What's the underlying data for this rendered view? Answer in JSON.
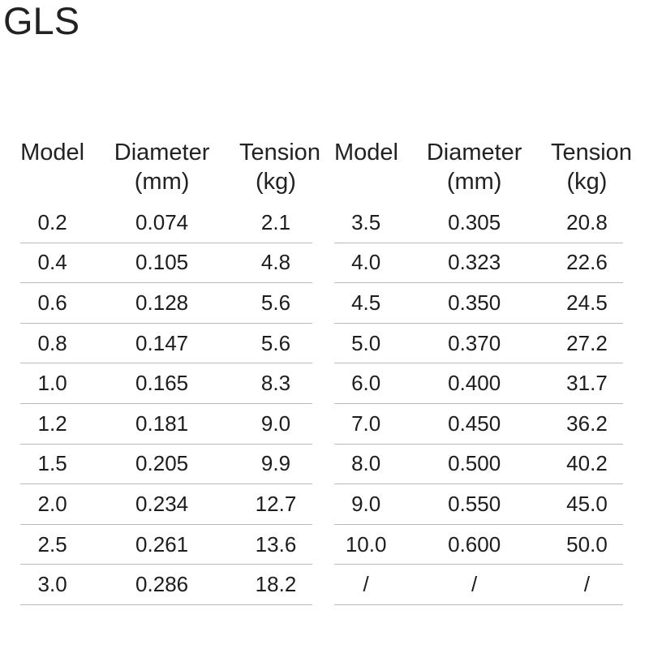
{
  "brand": {
    "logo_text": "GLS"
  },
  "spec": {
    "column_headers": [
      {
        "label": "Model",
        "unit": ""
      },
      {
        "label": "Diameter",
        "unit": "(mm)"
      },
      {
        "label": "Tension",
        "unit": "(kg)"
      }
    ],
    "left_table_rows": [
      {
        "model": "0.2",
        "diameter_mm": "0.074",
        "tension_kg": "2.1"
      },
      {
        "model": "0.4",
        "diameter_mm": "0.105",
        "tension_kg": "4.8"
      },
      {
        "model": "0.6",
        "diameter_mm": "0.128",
        "tension_kg": "5.6"
      },
      {
        "model": "0.8",
        "diameter_mm": "0.147",
        "tension_kg": "5.6"
      },
      {
        "model": "1.0",
        "diameter_mm": "0.165",
        "tension_kg": "8.3"
      },
      {
        "model": "1.2",
        "diameter_mm": "0.181",
        "tension_kg": "9.0"
      },
      {
        "model": "1.5",
        "diameter_mm": "0.205",
        "tension_kg": "9.9"
      },
      {
        "model": "2.0",
        "diameter_mm": "0.234",
        "tension_kg": "12.7"
      },
      {
        "model": "2.5",
        "diameter_mm": "0.261",
        "tension_kg": "13.6"
      },
      {
        "model": "3.0",
        "diameter_mm": "0.286",
        "tension_kg": "18.2"
      }
    ],
    "right_table_rows": [
      {
        "model": "3.5",
        "diameter_mm": "0.305",
        "tension_kg": "20.8"
      },
      {
        "model": "4.0",
        "diameter_mm": "0.323",
        "tension_kg": "22.6"
      },
      {
        "model": "4.5",
        "diameter_mm": "0.350",
        "tension_kg": "24.5"
      },
      {
        "model": "5.0",
        "diameter_mm": "0.370",
        "tension_kg": "27.2"
      },
      {
        "model": "6.0",
        "diameter_mm": "0.400",
        "tension_kg": "31.7"
      },
      {
        "model": "7.0",
        "diameter_mm": "0.450",
        "tension_kg": "36.2"
      },
      {
        "model": "8.0",
        "diameter_mm": "0.500",
        "tension_kg": "40.2"
      },
      {
        "model": "9.0",
        "diameter_mm": "0.550",
        "tension_kg": "45.0"
      },
      {
        "model": "10.0",
        "diameter_mm": "0.600",
        "tension_kg": "50.0"
      },
      {
        "model": "/",
        "diameter_mm": "/",
        "tension_kg": "/"
      }
    ]
  },
  "colors": {
    "background": "#ffffff",
    "heading": "#222222",
    "text": "#1d1d1d",
    "divider": "#bbbbbb"
  }
}
